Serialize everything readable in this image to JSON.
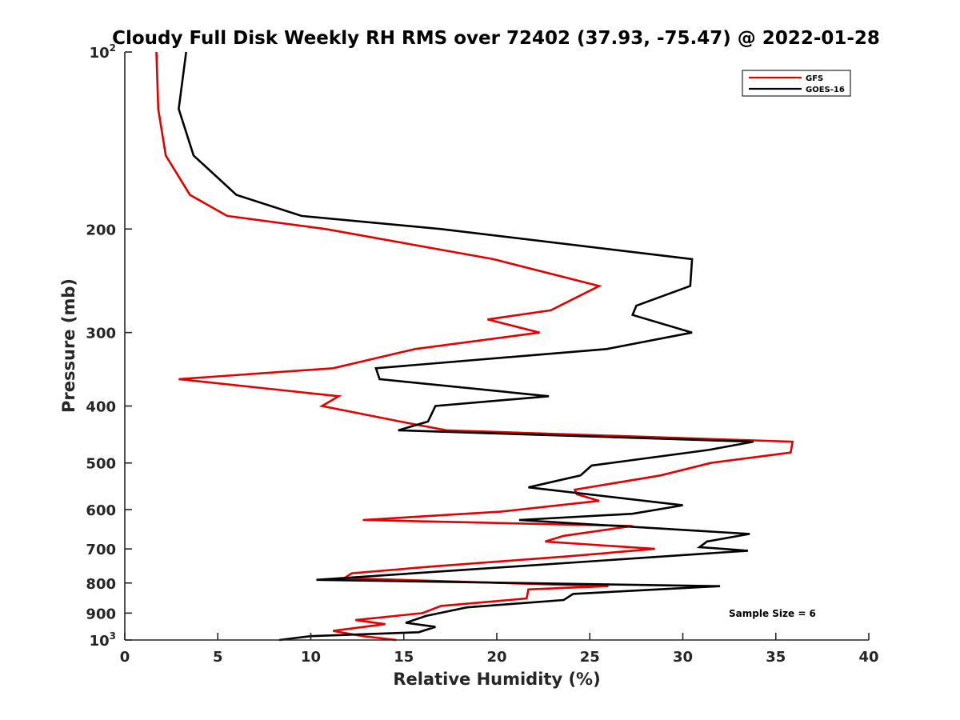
{
  "chart_data": {
    "type": "line",
    "title": "Cloudy Full Disk Weekly RH RMS over 72402 (37.93, -75.47) @ 2022-01-28",
    "xlabel": "Relative Humidity (%)",
    "ylabel": "Pressure (mb)",
    "xlim": [
      0,
      40
    ],
    "ylim": [
      100,
      1000
    ],
    "yscale": "log",
    "yaxis_reversed": true,
    "grid": false,
    "legend_position": "top-right",
    "annotation": "Sample Size = 6",
    "x_ticks": [
      "0",
      "5",
      "10",
      "15",
      "20",
      "25",
      "30",
      "35",
      "40"
    ],
    "y_ticks": [
      {
        "value": 100,
        "base": "10",
        "exp": "2"
      },
      {
        "value": 200,
        "label": "200"
      },
      {
        "value": 300,
        "label": "300"
      },
      {
        "value": 400,
        "label": "400"
      },
      {
        "value": 500,
        "label": "500"
      },
      {
        "value": 600,
        "label": "600"
      },
      {
        "value": 700,
        "label": "700"
      },
      {
        "value": 800,
        "label": "800"
      },
      {
        "value": 900,
        "label": "900"
      },
      {
        "value": 1000,
        "base": "10",
        "exp": "3"
      }
    ],
    "series": [
      {
        "name": "GFS",
        "color": "#e00000",
        "points": [
          [
            1.7,
            100
          ],
          [
            1.8,
            125
          ],
          [
            2.2,
            150
          ],
          [
            3.5,
            175
          ],
          [
            5.5,
            190
          ],
          [
            10.8,
            200
          ],
          [
            19.8,
            225
          ],
          [
            25.5,
            250
          ],
          [
            22.9,
            275
          ],
          [
            19.5,
            285
          ],
          [
            22.3,
            300
          ],
          [
            15.6,
            320
          ],
          [
            11.2,
            345
          ],
          [
            2.9,
            360
          ],
          [
            11.5,
            385
          ],
          [
            10.6,
            400
          ],
          [
            14.8,
            425
          ],
          [
            17.3,
            440
          ],
          [
            35.9,
            460
          ],
          [
            35.8,
            480
          ],
          [
            31.5,
            500
          ],
          [
            28.8,
            525
          ],
          [
            24.2,
            555
          ],
          [
            24.3,
            565
          ],
          [
            25.5,
            580
          ],
          [
            20.2,
            605
          ],
          [
            12.8,
            625
          ],
          [
            27.3,
            640
          ],
          [
            23.6,
            665
          ],
          [
            22.6,
            680
          ],
          [
            28.5,
            700
          ],
          [
            24.0,
            720
          ],
          [
            16.5,
            750
          ],
          [
            12.2,
            770
          ],
          [
            11.8,
            785
          ],
          [
            26.0,
            810
          ],
          [
            21.7,
            820
          ],
          [
            21.6,
            850
          ],
          [
            17.0,
            875
          ],
          [
            16.0,
            900
          ],
          [
            12.4,
            925
          ],
          [
            14.0,
            940
          ],
          [
            11.2,
            965
          ],
          [
            12.8,
            985
          ],
          [
            14.6,
            1000
          ]
        ]
      },
      {
        "name": "GOES-16",
        "color": "#000000",
        "points": [
          [
            3.3,
            100
          ],
          [
            2.9,
            125
          ],
          [
            3.7,
            150
          ],
          [
            6.0,
            175
          ],
          [
            9.5,
            190
          ],
          [
            17.0,
            200
          ],
          [
            30.5,
            225
          ],
          [
            30.4,
            250
          ],
          [
            27.5,
            270
          ],
          [
            27.3,
            280
          ],
          [
            30.5,
            300
          ],
          [
            25.9,
            320
          ],
          [
            13.5,
            345
          ],
          [
            13.7,
            360
          ],
          [
            22.8,
            385
          ],
          [
            16.7,
            400
          ],
          [
            16.3,
            425
          ],
          [
            14.7,
            440
          ],
          [
            33.8,
            460
          ],
          [
            31.4,
            475
          ],
          [
            25.1,
            505
          ],
          [
            24.5,
            525
          ],
          [
            21.7,
            550
          ],
          [
            30.0,
            590
          ],
          [
            27.3,
            610
          ],
          [
            21.2,
            625
          ],
          [
            33.6,
            660
          ],
          [
            31.3,
            680
          ],
          [
            30.9,
            695
          ],
          [
            33.5,
            705
          ],
          [
            10.3,
            790
          ],
          [
            32.0,
            810
          ],
          [
            24.1,
            835
          ],
          [
            23.6,
            855
          ],
          [
            18.4,
            880
          ],
          [
            16.2,
            910
          ],
          [
            15.1,
            935
          ],
          [
            16.7,
            950
          ],
          [
            15.8,
            970
          ],
          [
            10.0,
            985
          ],
          [
            8.3,
            1000
          ]
        ]
      }
    ]
  }
}
